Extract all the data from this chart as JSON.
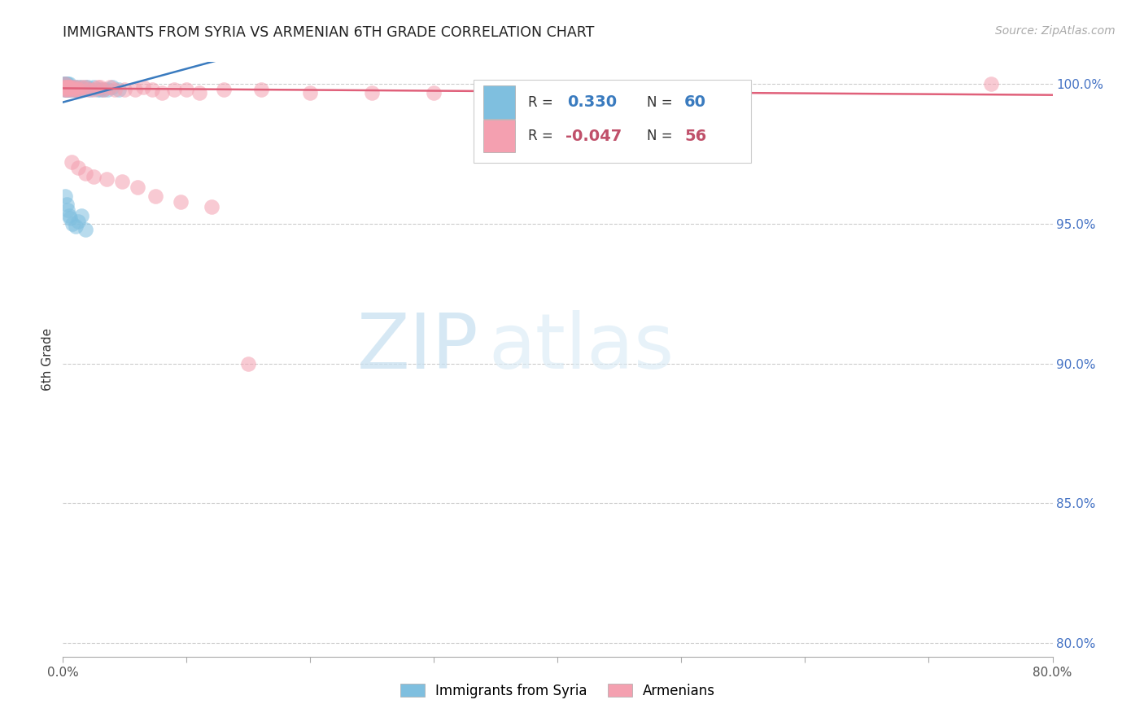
{
  "title": "IMMIGRANTS FROM SYRIA VS ARMENIAN 6TH GRADE CORRELATION CHART",
  "source": "Source: ZipAtlas.com",
  "ylabel": "6th Grade",
  "x_min": 0.0,
  "x_max": 0.8,
  "y_min": 0.795,
  "y_max": 1.008,
  "x_ticks": [
    0.0,
    0.1,
    0.2,
    0.3,
    0.4,
    0.5,
    0.6,
    0.7,
    0.8
  ],
  "x_tick_labels": [
    "0.0%",
    "",
    "",
    "",
    "",
    "",
    "",
    "",
    "80.0%"
  ],
  "y_ticks": [
    0.8,
    0.85,
    0.9,
    0.95,
    1.0
  ],
  "right_y_labels": [
    "80.0%",
    "85.0%",
    "90.0%",
    "95.0%",
    "100.0%"
  ],
  "legend1_R": "0.330",
  "legend1_N": "60",
  "legend2_R": "-0.047",
  "legend2_N": "56",
  "blue_color": "#7fbfdf",
  "pink_color": "#f4a0b0",
  "blue_line_color": "#3a7bbf",
  "pink_line_color": "#e0607a",
  "watermark_zip": "ZIP",
  "watermark_atlas": "atlas",
  "blue_x": [
    0.001,
    0.001,
    0.001,
    0.001,
    0.001,
    0.002,
    0.002,
    0.002,
    0.002,
    0.002,
    0.002,
    0.002,
    0.003,
    0.003,
    0.003,
    0.003,
    0.003,
    0.004,
    0.004,
    0.004,
    0.004,
    0.005,
    0.005,
    0.005,
    0.006,
    0.006,
    0.006,
    0.007,
    0.007,
    0.008,
    0.008,
    0.009,
    0.01,
    0.01,
    0.011,
    0.012,
    0.013,
    0.014,
    0.015,
    0.016,
    0.018,
    0.02,
    0.022,
    0.025,
    0.028,
    0.03,
    0.033,
    0.036,
    0.04,
    0.045,
    0.002,
    0.003,
    0.004,
    0.005,
    0.006,
    0.008,
    0.01,
    0.012,
    0.015,
    0.018
  ],
  "blue_y": [
    1.0,
    1.0,
    0.999,
    0.999,
    0.999,
    1.0,
    1.0,
    0.999,
    0.999,
    0.999,
    0.998,
    0.998,
    1.0,
    0.999,
    0.999,
    0.998,
    0.998,
    1.0,
    0.999,
    0.998,
    0.998,
    1.0,
    0.999,
    0.998,
    0.999,
    0.999,
    0.998,
    0.999,
    0.998,
    0.999,
    0.998,
    0.998,
    0.999,
    0.998,
    0.998,
    0.999,
    0.998,
    0.998,
    0.999,
    0.998,
    0.999,
    0.999,
    0.998,
    0.999,
    0.998,
    0.998,
    0.998,
    0.998,
    0.999,
    0.998,
    0.96,
    0.957,
    0.955,
    0.953,
    0.952,
    0.95,
    0.949,
    0.951,
    0.953,
    0.948
  ],
  "pink_x": [
    0.001,
    0.001,
    0.002,
    0.002,
    0.003,
    0.003,
    0.004,
    0.004,
    0.005,
    0.006,
    0.007,
    0.008,
    0.009,
    0.01,
    0.011,
    0.013,
    0.015,
    0.018,
    0.02,
    0.025,
    0.028,
    0.03,
    0.033,
    0.038,
    0.042,
    0.05,
    0.058,
    0.065,
    0.072,
    0.08,
    0.09,
    0.1,
    0.11,
    0.13,
    0.16,
    0.2,
    0.25,
    0.3,
    0.35,
    0.4,
    0.45,
    0.48,
    0.5,
    0.55,
    0.75,
    0.007,
    0.012,
    0.018,
    0.025,
    0.035,
    0.048,
    0.06,
    0.075,
    0.095,
    0.12,
    0.15
  ],
  "pink_y": [
    0.999,
    0.998,
    1.0,
    0.999,
    0.999,
    0.998,
    0.999,
    0.998,
    0.999,
    0.999,
    0.998,
    0.999,
    0.998,
    0.999,
    0.998,
    0.998,
    0.999,
    0.999,
    0.998,
    0.998,
    0.999,
    0.999,
    0.998,
    0.999,
    0.998,
    0.998,
    0.998,
    0.999,
    0.998,
    0.997,
    0.998,
    0.998,
    0.997,
    0.998,
    0.998,
    0.997,
    0.997,
    0.997,
    0.996,
    0.996,
    0.997,
    0.996,
    0.996,
    0.997,
    1.0,
    0.972,
    0.97,
    0.968,
    0.967,
    0.966,
    0.965,
    0.963,
    0.96,
    0.958,
    0.956,
    0.9
  ]
}
